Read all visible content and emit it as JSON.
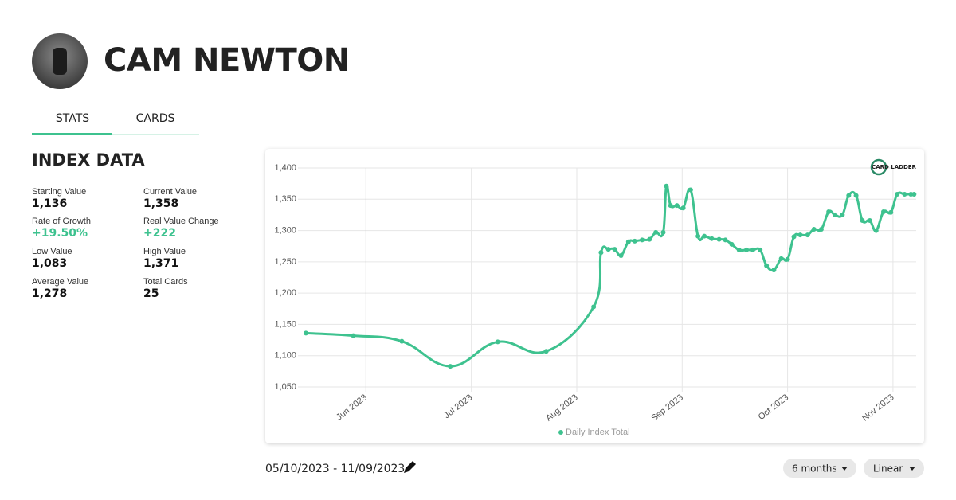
{
  "header": {
    "title": "CAM NEWTON"
  },
  "tabs": [
    "STATS",
    "CARDS"
  ],
  "section_title": "INDEX DATA",
  "stats": [
    {
      "label": "Starting Value",
      "value": "1,136"
    },
    {
      "label": "Current Value",
      "value": "1,358"
    },
    {
      "label": "Rate of Growth",
      "value": "+19.50%"
    },
    {
      "label": "Real Value Change",
      "value": "+222"
    },
    {
      "label": "Low Value",
      "value": "1,083"
    },
    {
      "label": "High Value",
      "value": "1,371"
    },
    {
      "label": "Average Value",
      "value": "1,278"
    },
    {
      "label": "Total Cards",
      "value": "25"
    }
  ],
  "logo_text": "CARD LADDER",
  "chart_data": {
    "type": "line",
    "x": [
      5.43,
      5.88,
      6.34,
      6.8,
      7.25,
      7.71,
      8.16,
      8.23,
      8.3,
      8.36,
      8.42,
      8.49,
      8.55,
      8.62,
      8.69,
      8.75,
      8.82,
      8.85,
      8.89,
      8.95,
      9.01,
      9.08,
      9.15,
      9.21,
      9.28,
      9.35,
      9.41,
      9.47,
      9.54,
      9.61,
      9.67,
      9.74,
      9.8,
      9.87,
      9.94,
      10.0,
      10.06,
      10.12,
      10.19,
      10.25,
      10.32,
      10.39,
      10.45,
      10.52,
      10.58,
      10.65,
      10.71,
      10.78,
      10.84,
      10.91,
      10.98,
      11.04,
      11.11,
      11.17,
      11.2
    ],
    "series": [
      {
        "name": "Daily Index Total",
        "color": "#3ec28f",
        "values": [
          1136,
          1132,
          1123,
          1083,
          1122,
          1107,
          1178,
          1265,
          1270,
          1270,
          1260,
          1282,
          1283,
          1285,
          1286,
          1297,
          1297,
          1371,
          1340,
          1340,
          1336,
          1365,
          1291,
          1291,
          1287,
          1286,
          1285,
          1278,
          1269,
          1269,
          1269,
          1269,
          1244,
          1237,
          1255,
          1254,
          1290,
          1293,
          1293,
          1302,
          1302,
          1330,
          1325,
          1325,
          1356,
          1356,
          1316,
          1316,
          1300,
          1330,
          1329,
          1358,
          1358,
          1358,
          1358
        ]
      }
    ],
    "xlim": [
      5.4,
      11.22
    ],
    "xticks": [
      {
        "value": 6,
        "label": "Jun 2023"
      },
      {
        "value": 7,
        "label": "Jul 2023"
      },
      {
        "value": 8,
        "label": "Aug 2023"
      },
      {
        "value": 9,
        "label": "Sep 2023"
      },
      {
        "value": 10,
        "label": "Oct 2023"
      },
      {
        "value": 11,
        "label": "Nov 2023"
      }
    ],
    "ylim": [
      1050,
      1400
    ],
    "yticks": [
      {
        "value": 1050,
        "label": "1,050"
      },
      {
        "value": 1100,
        "label": "1,100"
      },
      {
        "value": 1150,
        "label": "1,150"
      },
      {
        "value": 1200,
        "label": "1,200"
      },
      {
        "value": 1250,
        "label": "1,250"
      },
      {
        "value": 1300,
        "label": "1,300"
      },
      {
        "value": 1350,
        "label": "1,350"
      },
      {
        "value": 1400,
        "label": "1,400"
      }
    ],
    "grid": true,
    "legend": "bottom"
  },
  "date_range": "05/10/2023 - 11/09/2023",
  "controls": [
    "6 months",
    "Linear"
  ]
}
